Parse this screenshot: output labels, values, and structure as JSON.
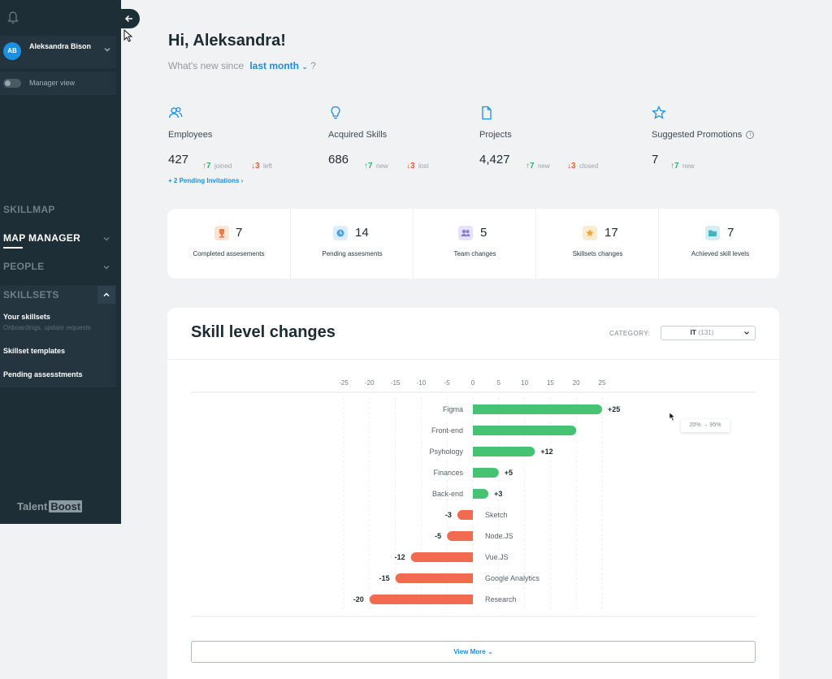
{
  "user": {
    "initials": "AB",
    "name": "Aleksandra Bison",
    "manager_view_label": "Manager view"
  },
  "nav": {
    "skillmap": "SKILLMAP",
    "map_manager": "MAP MANAGER",
    "people": "PEOPLE",
    "skillsets": "SKILLSETS",
    "sub_items": [
      {
        "label": "Your skillsets",
        "note": "Onboardings, update requests"
      },
      {
        "label": "Skillset templates"
      },
      {
        "label": "Pending assesstments"
      }
    ]
  },
  "brand": {
    "part1": "Talent",
    "part2": "Boost"
  },
  "header": {
    "greeting": "Hi, Aleksandra!",
    "subline_prefix": "What's new since",
    "period": "last month",
    "subline_suffix": "?"
  },
  "stats": [
    {
      "label": "Employees",
      "value": "427",
      "up": "7",
      "up_text": "joined",
      "down": "3",
      "down_text": "left"
    },
    {
      "label": "Acquired Skills",
      "value": "686",
      "up": "7",
      "up_text": "new",
      "down": "3",
      "down_text": "lost"
    },
    {
      "label": "Projects",
      "value": "4,427",
      "up": "7",
      "up_text": "new",
      "down": "3",
      "down_text": "closed"
    },
    {
      "label": "Suggested Promotions",
      "value": "7",
      "up": "7",
      "up_text": "new"
    }
  ],
  "pending_invitations": "+ 2 Pending Invitations ›",
  "summary": [
    {
      "value": "7",
      "label": "Completed assesements",
      "icon": "trophy-icon",
      "color": "#ffe3d6",
      "fg": "#ef7a45"
    },
    {
      "value": "14",
      "label": "Pending assesments",
      "icon": "clock-icon",
      "color": "#dbeefc",
      "fg": "#4aa3e6"
    },
    {
      "value": "5",
      "label": "Team changes",
      "icon": "team-icon",
      "color": "#e6e1f7",
      "fg": "#8a7bcf"
    },
    {
      "value": "17",
      "label": "Skillsets changes",
      "icon": "star-icon",
      "color": "#fdecd0",
      "fg": "#f0a63a"
    },
    {
      "value": "7",
      "label": "Achieved skill levels",
      "icon": "folder-icon",
      "color": "#d6eef2",
      "fg": "#4bb1c4"
    }
  ],
  "chart_section": {
    "title": "Skill level changes",
    "category_label": "CATEGORY:",
    "category_value": "IT",
    "category_count": "(131)",
    "tooltip": "20% → 95%",
    "view_more": "View More ⌄"
  },
  "chart_data": {
    "type": "bar",
    "orientation": "horizontal",
    "x_ticks": [
      -25,
      -20,
      -15,
      -10,
      -5,
      0,
      5,
      10,
      15,
      20,
      25
    ],
    "xlim": [
      -25,
      25
    ],
    "categories": [
      "Figma",
      "Front-end",
      "Psyhology",
      "Finances",
      "Back-end",
      "Sketch",
      "Node.JS",
      "Vue.JS",
      "Google Analytics",
      "Research"
    ],
    "values": [
      25,
      20,
      12,
      5,
      3,
      -3,
      -5,
      -12,
      -15,
      -20
    ],
    "data_labels": [
      "+25",
      "",
      "+12",
      "+5",
      "+3",
      "-3",
      "-5",
      "-12",
      "-15",
      "-20"
    ],
    "colors": {
      "positive": "#46c372",
      "negative": "#f26a4f"
    },
    "grid": true
  }
}
